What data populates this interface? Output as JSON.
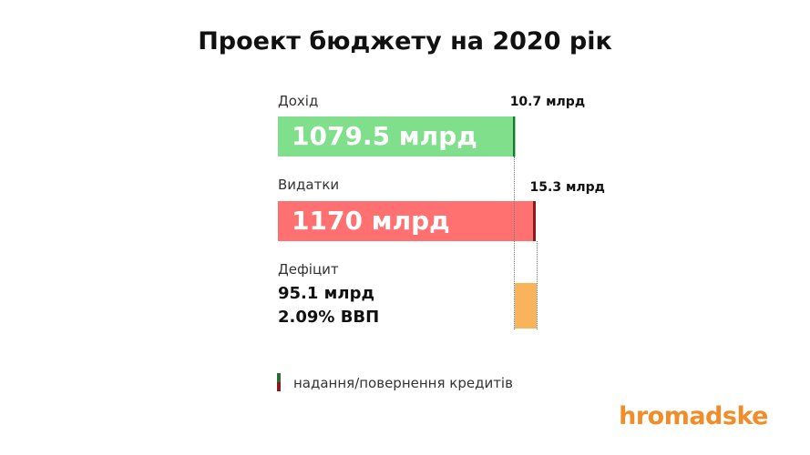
{
  "chart_data": {
    "type": "bar",
    "title": "Проект бюджету на 2020 рік",
    "unit": "млрд",
    "categories": [
      "Дохід",
      "Видатки",
      "Дефіцит"
    ],
    "series": [
      {
        "name": "Дохід",
        "value": 1079.5,
        "value_label": "1079.5 млрд",
        "credit": 10.7,
        "credit_label": "10.7 млрд",
        "color": "#7fdf8b",
        "credit_color": "#2a6b3a"
      },
      {
        "name": "Видатки",
        "value": 1170,
        "value_label": "1170 млрд",
        "credit": 15.3,
        "credit_label": "15.3 млрд",
        "color": "#ff7171",
        "credit_color": "#8b1a1a"
      }
    ],
    "deficit": {
      "label": "Дефіцит",
      "value": 95.1,
      "value_label": "95.1 млрд",
      "gdp_label": "2.09% ВВП",
      "color": "#f9b35a"
    },
    "legend": {
      "label": "надання/повернення кредитів",
      "colors": [
        "#2a6b3a",
        "#8b1a1a"
      ]
    },
    "xlim": [
      0,
      1200
    ]
  },
  "brand": "hromadske"
}
